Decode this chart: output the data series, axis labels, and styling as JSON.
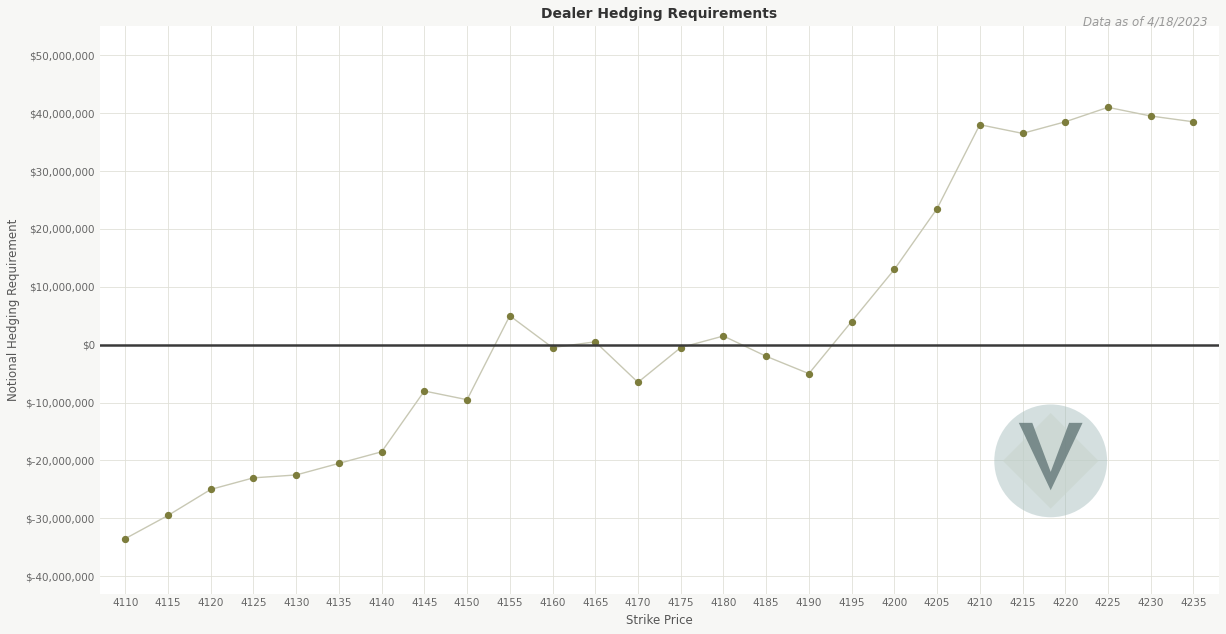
{
  "title": "Dealer Hedging Requirements",
  "subtitle": "Data as of 4/18/2023",
  "xlabel": "Strike Price",
  "ylabel": "Notional Hedging Requirement",
  "background_color": "#f7f7f5",
  "plot_bg_color": "#ffffff",
  "grid_color": "#e0e0d8",
  "line_color": "#c8c8b4",
  "marker_color": "#7d7d3c",
  "zero_line_color": "#3a3a3a",
  "title_fontsize": 10,
  "subtitle_fontsize": 8.5,
  "xlabel_fontsize": 8.5,
  "ylabel_fontsize": 8.5,
  "tick_fontsize": 7.5,
  "strike_prices": [
    4110,
    4115,
    4120,
    4125,
    4130,
    4135,
    4140,
    4145,
    4150,
    4155,
    4160,
    4165,
    4170,
    4175,
    4180,
    4185,
    4190,
    4195,
    4200,
    4205,
    4210,
    4215,
    4220,
    4225,
    4230,
    4235
  ],
  "values": [
    -33500000,
    -29500000,
    -25000000,
    -23000000,
    -22500000,
    -20500000,
    -18500000,
    -8000000,
    -9500000,
    5000000,
    -500000,
    500000,
    -6500000,
    -500000,
    1500000,
    -2000000,
    -5000000,
    4000000,
    13000000,
    23500000,
    38000000,
    36500000,
    38500000,
    41000000,
    39500000,
    38500000
  ],
  "ylim": [
    -43000000,
    55000000
  ],
  "yticks": [
    -40000000,
    -30000000,
    -20000000,
    -10000000,
    0,
    10000000,
    20000000,
    30000000,
    40000000,
    50000000
  ],
  "ytick_labels": [
    "$-40,000,000",
    "$-30,000,000",
    "$-20,000,000",
    "$-10,000,000",
    "$0",
    "$10,000,000",
    "$20,000,000",
    "$30,000,000",
    "$40,000,000",
    "$50,000,000"
  ]
}
